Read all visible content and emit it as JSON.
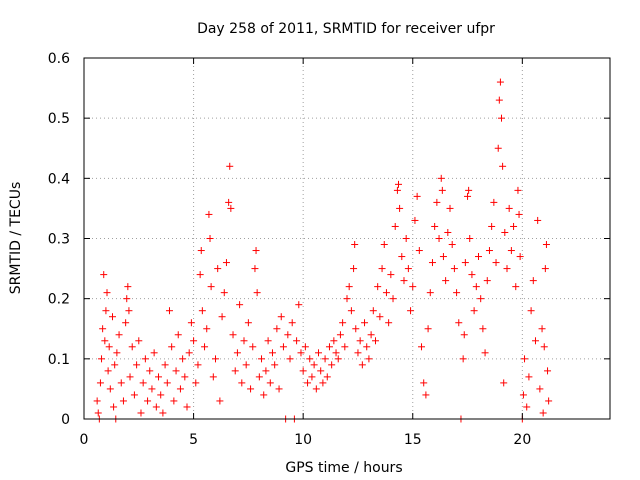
{
  "chart_data": {
    "type": "scatter",
    "title": "Day 258 of 2011, SRMTID for receiver ufpr",
    "xlabel": "GPS time / hours",
    "ylabel": "SRMTID / TECUs",
    "xlim": [
      0,
      24
    ],
    "ylim": [
      0,
      0.6
    ],
    "xticks": [
      0,
      5,
      10,
      15,
      20
    ],
    "yticks": [
      0,
      0.1,
      0.2,
      0.3,
      0.4,
      0.5,
      0.6
    ],
    "xtick_labels": [
      "0",
      "5",
      "10",
      "15",
      "20"
    ],
    "ytick_labels": [
      "0",
      "0.1",
      "0.2",
      "0.3",
      "0.4",
      "0.5",
      "0.6"
    ],
    "grid": true,
    "marker": "+",
    "color": "#ff0000",
    "series": [
      {
        "name": "SRMTID",
        "points": [
          [
            0.6,
            0.03
          ],
          [
            0.65,
            0.01
          ],
          [
            0.7,
            0.0
          ],
          [
            0.75,
            0.06
          ],
          [
            0.8,
            0.1
          ],
          [
            0.85,
            0.15
          ],
          [
            0.9,
            0.24
          ],
          [
            0.95,
            0.13
          ],
          [
            1.0,
            0.18
          ],
          [
            1.05,
            0.21
          ],
          [
            1.1,
            0.08
          ],
          [
            1.15,
            0.12
          ],
          [
            1.2,
            0.05
          ],
          [
            1.3,
            0.17
          ],
          [
            1.35,
            0.02
          ],
          [
            1.4,
            0.09
          ],
          [
            1.45,
            0.0
          ],
          [
            1.5,
            0.11
          ],
          [
            1.6,
            0.14
          ],
          [
            1.7,
            0.06
          ],
          [
            1.8,
            0.03
          ],
          [
            1.9,
            0.16
          ],
          [
            1.95,
            0.2
          ],
          [
            2.0,
            0.22
          ],
          [
            2.05,
            0.18
          ],
          [
            2.1,
            0.07
          ],
          [
            2.2,
            0.12
          ],
          [
            2.3,
            0.04
          ],
          [
            2.4,
            0.09
          ],
          [
            2.5,
            0.13
          ],
          [
            2.6,
            0.01
          ],
          [
            2.7,
            0.06
          ],
          [
            2.8,
            0.1
          ],
          [
            2.9,
            0.03
          ],
          [
            3.0,
            0.08
          ],
          [
            3.1,
            0.05
          ],
          [
            3.2,
            0.11
          ],
          [
            3.3,
            0.02
          ],
          [
            3.4,
            0.07
          ],
          [
            3.5,
            0.04
          ],
          [
            3.6,
            0.01
          ],
          [
            3.7,
            0.09
          ],
          [
            3.8,
            0.06
          ],
          [
            3.9,
            0.18
          ],
          [
            4.0,
            0.12
          ],
          [
            4.1,
            0.03
          ],
          [
            4.2,
            0.08
          ],
          [
            4.3,
            0.14
          ],
          [
            4.4,
            0.05
          ],
          [
            4.5,
            0.1
          ],
          [
            4.6,
            0.07
          ],
          [
            4.7,
            0.02
          ],
          [
            4.8,
            0.11
          ],
          [
            4.9,
            0.16
          ],
          [
            5.0,
            0.13
          ],
          [
            5.1,
            0.06
          ],
          [
            5.2,
            0.09
          ],
          [
            5.3,
            0.24
          ],
          [
            5.35,
            0.28
          ],
          [
            5.4,
            0.18
          ],
          [
            5.5,
            0.12
          ],
          [
            5.6,
            0.15
          ],
          [
            5.7,
            0.34
          ],
          [
            5.75,
            0.3
          ],
          [
            5.8,
            0.22
          ],
          [
            5.9,
            0.07
          ],
          [
            6.0,
            0.1
          ],
          [
            6.1,
            0.25
          ],
          [
            6.2,
            0.03
          ],
          [
            6.3,
            0.17
          ],
          [
            6.4,
            0.21
          ],
          [
            6.5,
            0.26
          ],
          [
            6.6,
            0.36
          ],
          [
            6.65,
            0.42
          ],
          [
            6.7,
            0.35
          ],
          [
            6.8,
            0.14
          ],
          [
            6.9,
            0.08
          ],
          [
            7.0,
            0.11
          ],
          [
            7.1,
            0.19
          ],
          [
            7.2,
            0.06
          ],
          [
            7.3,
            0.13
          ],
          [
            7.4,
            0.09
          ],
          [
            7.5,
            0.16
          ],
          [
            7.6,
            0.05
          ],
          [
            7.7,
            0.12
          ],
          [
            7.8,
            0.25
          ],
          [
            7.85,
            0.28
          ],
          [
            7.9,
            0.21
          ],
          [
            8.0,
            0.07
          ],
          [
            8.1,
            0.1
          ],
          [
            8.2,
            0.04
          ],
          [
            8.3,
            0.08
          ],
          [
            8.4,
            0.13
          ],
          [
            8.5,
            0.06
          ],
          [
            8.6,
            0.11
          ],
          [
            8.7,
            0.09
          ],
          [
            8.8,
            0.15
          ],
          [
            8.9,
            0.05
          ],
          [
            9.0,
            0.17
          ],
          [
            9.1,
            0.12
          ],
          [
            9.2,
            0.0
          ],
          [
            9.3,
            0.14
          ],
          [
            9.4,
            0.1
          ],
          [
            9.5,
            0.16
          ],
          [
            9.6,
            0.0
          ],
          [
            9.7,
            0.13
          ],
          [
            9.8,
            0.19
          ],
          [
            9.9,
            0.11
          ],
          [
            10.0,
            0.08
          ],
          [
            10.1,
            0.12
          ],
          [
            10.2,
            0.06
          ],
          [
            10.3,
            0.1
          ],
          [
            10.4,
            0.07
          ],
          [
            10.5,
            0.09
          ],
          [
            10.6,
            0.05
          ],
          [
            10.7,
            0.11
          ],
          [
            10.8,
            0.08
          ],
          [
            10.9,
            0.06
          ],
          [
            11.0,
            0.1
          ],
          [
            11.1,
            0.07
          ],
          [
            11.2,
            0.12
          ],
          [
            11.3,
            0.09
          ],
          [
            11.4,
            0.13
          ],
          [
            11.5,
            0.11
          ],
          [
            11.6,
            0.1
          ],
          [
            11.7,
            0.14
          ],
          [
            11.8,
            0.16
          ],
          [
            11.9,
            0.12
          ],
          [
            12.0,
            0.2
          ],
          [
            12.1,
            0.22
          ],
          [
            12.2,
            0.18
          ],
          [
            12.3,
            0.25
          ],
          [
            12.35,
            0.29
          ],
          [
            12.4,
            0.15
          ],
          [
            12.5,
            0.11
          ],
          [
            12.6,
            0.13
          ],
          [
            12.7,
            0.09
          ],
          [
            12.8,
            0.16
          ],
          [
            12.9,
            0.12
          ],
          [
            13.0,
            0.1
          ],
          [
            13.1,
            0.14
          ],
          [
            13.2,
            0.18
          ],
          [
            13.3,
            0.13
          ],
          [
            13.4,
            0.22
          ],
          [
            13.5,
            0.17
          ],
          [
            13.6,
            0.25
          ],
          [
            13.7,
            0.29
          ],
          [
            13.8,
            0.21
          ],
          [
            13.9,
            0.16
          ],
          [
            14.0,
            0.24
          ],
          [
            14.1,
            0.2
          ],
          [
            14.2,
            0.32
          ],
          [
            14.3,
            0.38
          ],
          [
            14.35,
            0.39
          ],
          [
            14.4,
            0.35
          ],
          [
            14.5,
            0.27
          ],
          [
            14.6,
            0.23
          ],
          [
            14.7,
            0.3
          ],
          [
            14.8,
            0.25
          ],
          [
            14.9,
            0.18
          ],
          [
            15.0,
            0.22
          ],
          [
            15.1,
            0.33
          ],
          [
            15.2,
            0.37
          ],
          [
            15.3,
            0.28
          ],
          [
            15.4,
            0.12
          ],
          [
            15.5,
            0.06
          ],
          [
            15.6,
            0.04
          ],
          [
            15.7,
            0.15
          ],
          [
            15.8,
            0.21
          ],
          [
            15.9,
            0.26
          ],
          [
            16.0,
            0.32
          ],
          [
            16.1,
            0.36
          ],
          [
            16.2,
            0.3
          ],
          [
            16.3,
            0.4
          ],
          [
            16.35,
            0.38
          ],
          [
            16.4,
            0.27
          ],
          [
            16.5,
            0.23
          ],
          [
            16.6,
            0.31
          ],
          [
            16.7,
            0.35
          ],
          [
            16.8,
            0.29
          ],
          [
            16.9,
            0.25
          ],
          [
            17.0,
            0.21
          ],
          [
            17.1,
            0.16
          ],
          [
            17.2,
            0.0
          ],
          [
            17.3,
            0.1
          ],
          [
            17.35,
            0.14
          ],
          [
            17.4,
            0.26
          ],
          [
            17.5,
            0.37
          ],
          [
            17.55,
            0.38
          ],
          [
            17.6,
            0.3
          ],
          [
            17.7,
            0.24
          ],
          [
            17.8,
            0.18
          ],
          [
            17.9,
            0.22
          ],
          [
            18.0,
            0.27
          ],
          [
            18.1,
            0.2
          ],
          [
            18.2,
            0.15
          ],
          [
            18.3,
            0.11
          ],
          [
            18.4,
            0.23
          ],
          [
            18.5,
            0.28
          ],
          [
            18.6,
            0.32
          ],
          [
            18.7,
            0.36
          ],
          [
            18.8,
            0.26
          ],
          [
            18.9,
            0.45
          ],
          [
            18.95,
            0.53
          ],
          [
            19.0,
            0.56
          ],
          [
            19.05,
            0.5
          ],
          [
            19.1,
            0.42
          ],
          [
            19.15,
            0.06
          ],
          [
            19.2,
            0.31
          ],
          [
            19.3,
            0.25
          ],
          [
            19.4,
            0.35
          ],
          [
            19.5,
            0.28
          ],
          [
            19.6,
            0.32
          ],
          [
            19.7,
            0.22
          ],
          [
            19.8,
            0.38
          ],
          [
            19.85,
            0.34
          ],
          [
            19.9,
            0.27
          ],
          [
            20.0,
            0.0
          ],
          [
            20.05,
            0.04
          ],
          [
            20.1,
            0.1
          ],
          [
            20.2,
            0.02
          ],
          [
            20.3,
            0.07
          ],
          [
            20.4,
            0.18
          ],
          [
            20.5,
            0.23
          ],
          [
            20.6,
            0.13
          ],
          [
            20.7,
            0.33
          ],
          [
            20.8,
            0.05
          ],
          [
            20.9,
            0.15
          ],
          [
            20.95,
            0.01
          ],
          [
            21.0,
            0.12
          ],
          [
            21.05,
            0.25
          ],
          [
            21.1,
            0.29
          ],
          [
            21.15,
            0.08
          ],
          [
            21.2,
            0.03
          ]
        ]
      }
    ]
  }
}
